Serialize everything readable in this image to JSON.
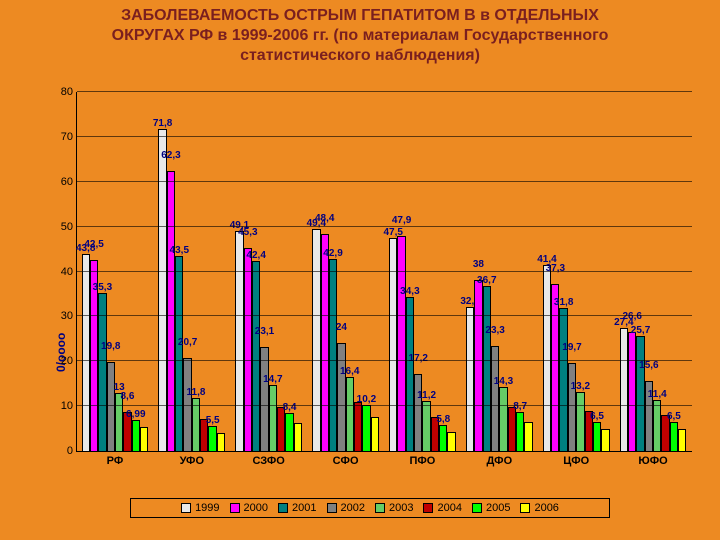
{
  "background_color": "#ed8a22",
  "title": {
    "line1": "ЗАБОЛЕВАЕМОСТЬ ОСТРЫМ ГЕПАТИТОМ В в ОТДЕЛЬНЫХ",
    "line2": "ОКРУГАХ РФ в 1999-2006 гг. (по материалам Государственного",
    "line3": "статистического наблюдения)",
    "color": "#7a1f1f",
    "fontsize": 16
  },
  "ylabel": "0/оооо",
  "ylabel_color": "#000080",
  "chart": {
    "type": "bar",
    "ylim": [
      0,
      80
    ],
    "ytick_step": 10,
    "grid_color": "#000000",
    "categories": [
      "РФ",
      "УФО",
      "СЗФО",
      "СФО",
      "ПФО",
      "ДФО",
      "ЦФО",
      "ЮФО"
    ],
    "series": [
      {
        "name": "1999",
        "color": "#e8e8e8"
      },
      {
        "name": "2000",
        "color": "#ff00ff"
      },
      {
        "name": "2001",
        "color": "#008080"
      },
      {
        "name": "2002",
        "color": "#808080"
      },
      {
        "name": "2003",
        "color": "#66cc66"
      },
      {
        "name": "2004",
        "color": "#c00000"
      },
      {
        "name": "2005",
        "color": "#00ff00"
      },
      {
        "name": "2006",
        "color": "#ffff00"
      }
    ],
    "data": [
      {
        "values": [
          43.8,
          42.5,
          35.3,
          19.8,
          13,
          8.6,
          6.99,
          5.26
        ],
        "labels": [
          "43,8",
          "42,5",
          "35,3",
          "19,8",
          "13",
          "8,6",
          "6,99",
          ""
        ]
      },
      {
        "values": [
          71.8,
          62.3,
          43.5,
          20.7,
          11.8,
          7.2,
          5.5,
          4.1
        ],
        "labels": [
          "71,8",
          "62,3",
          "43,5",
          "20,7",
          "11,8",
          "",
          "5,5",
          ""
        ]
      },
      {
        "values": [
          49.1,
          45.3,
          42.4,
          23.1,
          14.7,
          9.8,
          8.4,
          6.3
        ],
        "labels": [
          "49,1",
          "45,3",
          "42,4",
          "23,1",
          "14,7",
          "",
          "8,4",
          ""
        ]
      },
      {
        "values": [
          49.4,
          48.4,
          42.9,
          24,
          16.4,
          11.0,
          10.2,
          7.6
        ],
        "labels": [
          "49,4",
          "48,4",
          "42,9",
          "24",
          "16,4",
          "",
          "10,2",
          ""
        ]
      },
      {
        "values": [
          47.5,
          47.9,
          34.3,
          17.2,
          11.2,
          7.5,
          5.8,
          4.3
        ],
        "labels": [
          "47,5",
          "47,9",
          "34,3",
          "17,2",
          "11,2",
          "",
          "5,8",
          ""
        ]
      },
      {
        "values": [
          32.2,
          38,
          36.7,
          23.3,
          14.3,
          9.7,
          8.7,
          6.5
        ],
        "labels": [
          "32,2",
          "38",
          "36,7",
          "23,3",
          "14,3",
          "",
          "8,7",
          ""
        ]
      },
      {
        "values": [
          41.4,
          37.3,
          31.8,
          19.7,
          13.2,
          8.9,
          6.5,
          4.8
        ],
        "labels": [
          "41,4",
          "37,3",
          "31,8",
          "19,7",
          "13,2",
          "",
          "6,5",
          ""
        ]
      },
      {
        "values": [
          27.4,
          26.6,
          25.7,
          15.6,
          11.4,
          8.0,
          6.5,
          4.9
        ],
        "labels": [
          "27,4",
          "26,6",
          "25,7",
          "15,6",
          "11,4",
          "",
          "6,5",
          ""
        ]
      }
    ],
    "barlabel_color": "#000080",
    "legend_bg": "#ed8a22"
  }
}
